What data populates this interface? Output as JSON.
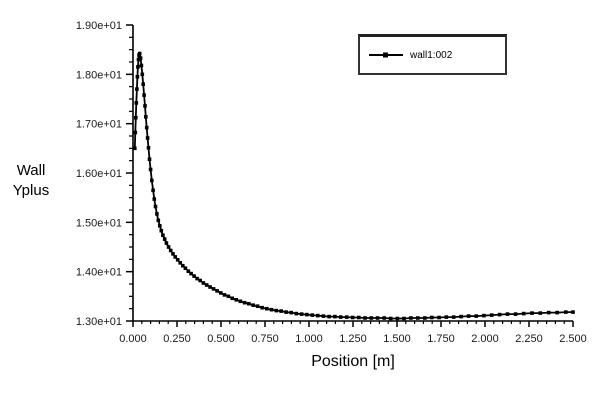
{
  "chart_data": {
    "type": "line",
    "title": "",
    "xlabel": "Position [m]",
    "ylabel_lines": [
      "Wall",
      "Yplus"
    ],
    "xlim": [
      0.0,
      2.5
    ],
    "ylim": [
      13.0,
      19.0
    ],
    "grid": false,
    "legend": {
      "position": "top-right",
      "bordered": true
    },
    "x_ticks": {
      "values": [
        0.0,
        0.25,
        0.5,
        0.75,
        1.0,
        1.25,
        1.5,
        1.75,
        2.0,
        2.25,
        2.5
      ],
      "labels": [
        "0.000",
        "0.250",
        "0.500",
        "0.750",
        "1.000",
        "1.250",
        "1.500",
        "1.750",
        "2.000",
        "2.250",
        "2.500"
      ],
      "minor_step": 0.05
    },
    "y_ticks": {
      "values": [
        13,
        14,
        15,
        16,
        17,
        18,
        19
      ],
      "labels": [
        "1.30e+01",
        "1.40e+01",
        "1.50e+01",
        "1.60e+01",
        "1.70e+01",
        "1.80e+01",
        "1.90e+01"
      ],
      "minor_step": 0.25
    },
    "series": [
      {
        "name": "wall1:002",
        "color": "#000000",
        "marker": "square",
        "points": [
          [
            0.01,
            16.5
          ],
          [
            0.013,
            16.82
          ],
          [
            0.016,
            17.12
          ],
          [
            0.019,
            17.42
          ],
          [
            0.022,
            17.7
          ],
          [
            0.025,
            17.95
          ],
          [
            0.028,
            18.15
          ],
          [
            0.031,
            18.3
          ],
          [
            0.034,
            18.39
          ],
          [
            0.038,
            18.42
          ],
          [
            0.043,
            18.33
          ],
          [
            0.048,
            18.18
          ],
          [
            0.053,
            18.0
          ],
          [
            0.058,
            17.8
          ],
          [
            0.063,
            17.58
          ],
          [
            0.068,
            17.36
          ],
          [
            0.073,
            17.14
          ],
          [
            0.078,
            16.92
          ],
          [
            0.083,
            16.71
          ],
          [
            0.088,
            16.51
          ],
          [
            0.094,
            16.28
          ],
          [
            0.1,
            16.07
          ],
          [
            0.107,
            15.85
          ],
          [
            0.114,
            15.65
          ],
          [
            0.121,
            15.47
          ],
          [
            0.128,
            15.32
          ],
          [
            0.136,
            15.17
          ],
          [
            0.144,
            15.04
          ],
          [
            0.152,
            14.93
          ],
          [
            0.161,
            14.83
          ],
          [
            0.17,
            14.74
          ],
          [
            0.18,
            14.66
          ],
          [
            0.19,
            14.58
          ],
          [
            0.202,
            14.5
          ],
          [
            0.214,
            14.43
          ],
          [
            0.227,
            14.36
          ],
          [
            0.24,
            14.3
          ],
          [
            0.254,
            14.24
          ],
          [
            0.268,
            14.18
          ],
          [
            0.283,
            14.12
          ],
          [
            0.298,
            14.07
          ],
          [
            0.314,
            14.01
          ],
          [
            0.33,
            13.96
          ],
          [
            0.347,
            13.91
          ],
          [
            0.364,
            13.86
          ],
          [
            0.382,
            13.82
          ],
          [
            0.4,
            13.77
          ],
          [
            0.419,
            13.73
          ],
          [
            0.438,
            13.69
          ],
          [
            0.458,
            13.65
          ],
          [
            0.478,
            13.61
          ],
          [
            0.499,
            13.57
          ],
          [
            0.52,
            13.53
          ],
          [
            0.542,
            13.5
          ],
          [
            0.564,
            13.46
          ],
          [
            0.587,
            13.43
          ],
          [
            0.61,
            13.4
          ],
          [
            0.634,
            13.37
          ],
          [
            0.658,
            13.35
          ],
          [
            0.683,
            13.32
          ],
          [
            0.708,
            13.3
          ],
          [
            0.734,
            13.27
          ],
          [
            0.76,
            13.25
          ],
          [
            0.787,
            13.23
          ],
          [
            0.814,
            13.21
          ],
          [
            0.842,
            13.2
          ],
          [
            0.87,
            13.18
          ],
          [
            0.899,
            13.17
          ],
          [
            0.928,
            13.15
          ],
          [
            0.958,
            13.14
          ],
          [
            0.988,
            13.13
          ],
          [
            1.019,
            13.12
          ],
          [
            1.05,
            13.11
          ],
          [
            1.082,
            13.1
          ],
          [
            1.114,
            13.09
          ],
          [
            1.147,
            13.09
          ],
          [
            1.18,
            13.08
          ],
          [
            1.214,
            13.08
          ],
          [
            1.248,
            13.07
          ],
          [
            1.283,
            13.07
          ],
          [
            1.318,
            13.06
          ],
          [
            1.354,
            13.06
          ],
          [
            1.39,
            13.06
          ],
          [
            1.427,
            13.06
          ],
          [
            1.464,
            13.05
          ],
          [
            1.502,
            13.05
          ],
          [
            1.54,
            13.05
          ],
          [
            1.579,
            13.06
          ],
          [
            1.618,
            13.06
          ],
          [
            1.658,
            13.06
          ],
          [
            1.698,
            13.07
          ],
          [
            1.739,
            13.07
          ],
          [
            1.78,
            13.08
          ],
          [
            1.822,
            13.08
          ],
          [
            1.864,
            13.09
          ],
          [
            1.907,
            13.1
          ],
          [
            1.95,
            13.1
          ],
          [
            1.994,
            13.11
          ],
          [
            2.038,
            13.12
          ],
          [
            2.083,
            13.13
          ],
          [
            2.128,
            13.14
          ],
          [
            2.174,
            13.14
          ],
          [
            2.22,
            13.15
          ],
          [
            2.267,
            13.16
          ],
          [
            2.314,
            13.16
          ],
          [
            2.362,
            13.17
          ],
          [
            2.41,
            13.17
          ],
          [
            2.459,
            13.18
          ],
          [
            2.5,
            13.18
          ]
        ]
      }
    ]
  }
}
